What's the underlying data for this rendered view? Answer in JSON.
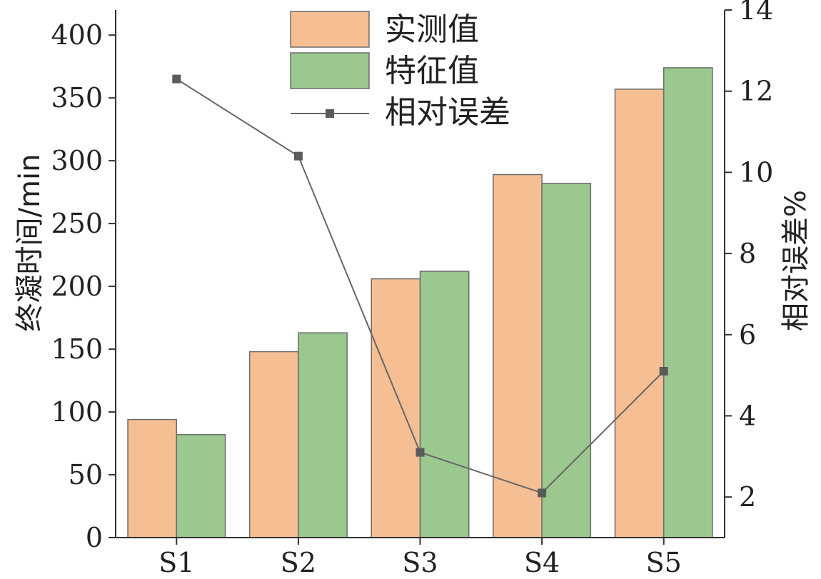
{
  "chart_data": {
    "type": "bar",
    "categories": [
      "S1",
      "S2",
      "S3",
      "S4",
      "S5"
    ],
    "series": [
      {
        "name": "实测值",
        "type": "bar",
        "axis": "left",
        "color": "#f5be93",
        "values": [
          94,
          148,
          206,
          289,
          357
        ]
      },
      {
        "name": "特征值",
        "type": "bar",
        "axis": "left",
        "color": "#9bc88e",
        "values": [
          82,
          163,
          212,
          282,
          374
        ]
      },
      {
        "name": "相对误差",
        "type": "line",
        "axis": "right",
        "color": "#666666",
        "marker": "square",
        "values": [
          12.3,
          10.4,
          3.1,
          2.1,
          5.1
        ]
      }
    ],
    "ylabel": "终凝时间/min",
    "ylim": [
      0,
      420
    ],
    "yticks": [
      0,
      50,
      100,
      150,
      200,
      250,
      300,
      350,
      400
    ],
    "y2label": "相对误差%",
    "y2lim": [
      1,
      14
    ],
    "y2ticks": [
      2,
      4,
      6,
      8,
      10,
      12,
      14
    ],
    "legend_position": "top-center",
    "grid": false
  }
}
